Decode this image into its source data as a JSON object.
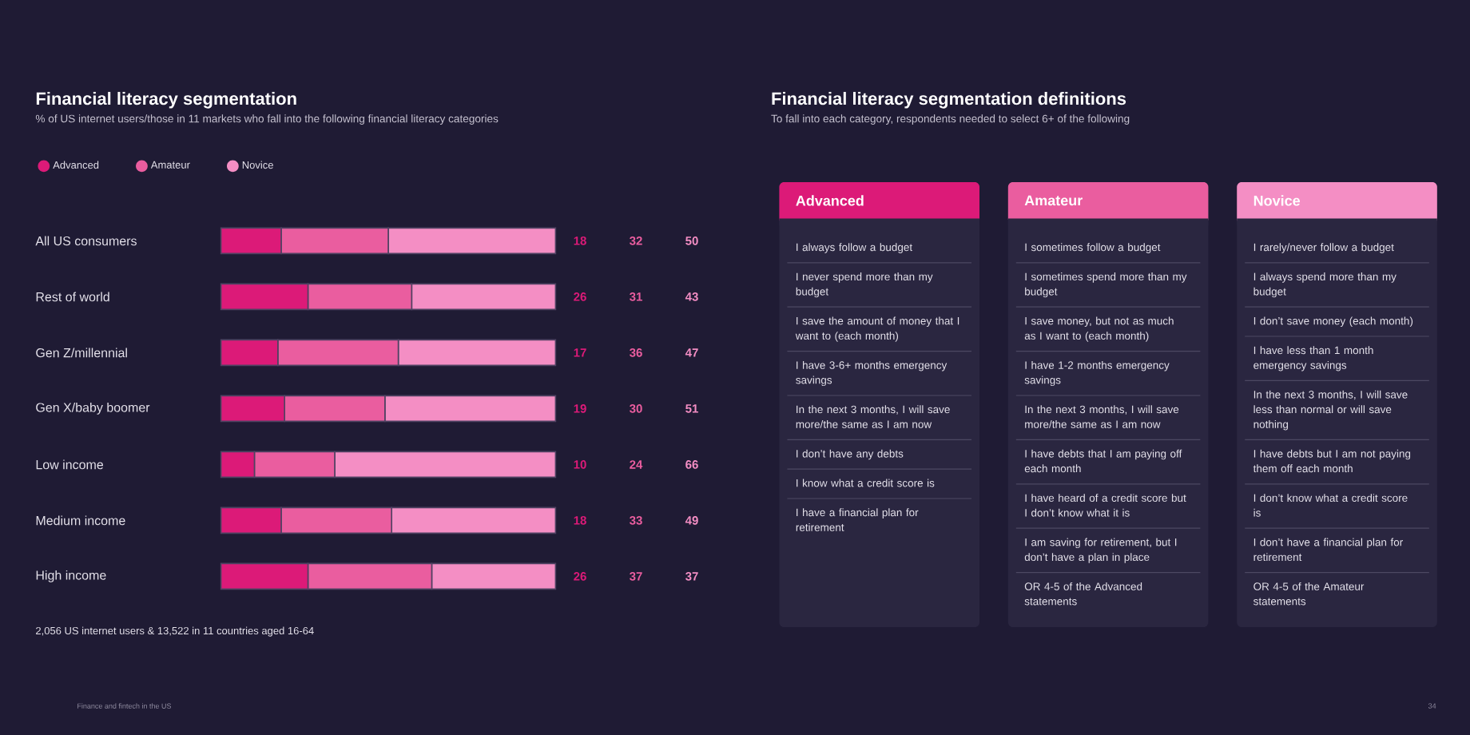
{
  "chart_data": [
    {
      "type": "bar",
      "orientation": "horizontal",
      "stacked": true,
      "title": "Financial literacy segmentation",
      "subtitle": "% of US internet users/those in 11 markets who fall into the following financial literacy categories",
      "categories": [
        "All US consumers",
        "Rest of world",
        "Gen Z/millennial",
        "Gen X/baby boomer",
        "Low income",
        "Medium income",
        "High income"
      ],
      "series": [
        {
          "name": "Advanced",
          "color": "#dc1a78",
          "values": [
            18,
            26,
            17,
            19,
            10,
            18,
            26
          ]
        },
        {
          "name": "Amateur",
          "color": "#ea5d9f",
          "values": [
            32,
            31,
            36,
            30,
            24,
            33,
            37
          ]
        },
        {
          "name": "Novice",
          "color": "#f48ec4",
          "values": [
            50,
            43,
            47,
            51,
            66,
            49,
            37
          ]
        }
      ],
      "xlim": [
        0,
        100
      ],
      "data_labels": true,
      "legend": "top left",
      "tick_labels": "y",
      "annotations": [
        "2,056 US internet users & 13,522 in 11 countries aged 16-64",
        "Finance and fintech in the US",
        "34"
      ]
    },
    {
      "type": "other",
      "title": "Financial literacy segmentation definitions",
      "subtitle": "To fall into each category, respondents needed to select 6+ of the following"
    },
    {
      "type": "other",
      "title": "Advanced",
      "colors": [
        "#dc1a78"
      ],
      "annotations": [
        "I always follow a budget",
        "I never spend more than my budget",
        "I save the amount of money that I want to (each month)",
        "I have 3-6+ months emergency savings",
        "In the next 3 months, I will save more/the same as I am now",
        "I don’t have any debts",
        "I know what a credit score is",
        "I have a financial plan for retirement"
      ]
    },
    {
      "type": "other",
      "title": "Amateur",
      "colors": [
        "#ea5d9f"
      ],
      "annotations": [
        "I sometimes follow a budget",
        "I sometimes spend more than my budget",
        "I save money, but not as much as I want to (each month)",
        "I have 1-2 months emergency savings",
        "In the next 3 months, I will save more/the same as I am now",
        "I have debts that I am paying off each month",
        "I have heard of a credit score but I don’t know what it is",
        "I am saving for retirement, but I don’t have a plan in place",
        "OR 4-5 of the Advanced statements"
      ]
    },
    {
      "type": "other",
      "title": "Novice",
      "colors": [
        "#f48ec4"
      ],
      "annotations": [
        "I rarely/never follow a budget",
        "I always spend more than my budget",
        "I don’t save money (each month)",
        "I have less than 1 month emergency savings",
        "In the next 3 months, I will save less than normal or will save nothing",
        "I have debts but I am not paying them off each month",
        "I don’t know what a credit score is",
        "I don’t have a financial plan for retirement",
        "OR 4-5 of the Amateur statements"
      ]
    }
  ]
}
